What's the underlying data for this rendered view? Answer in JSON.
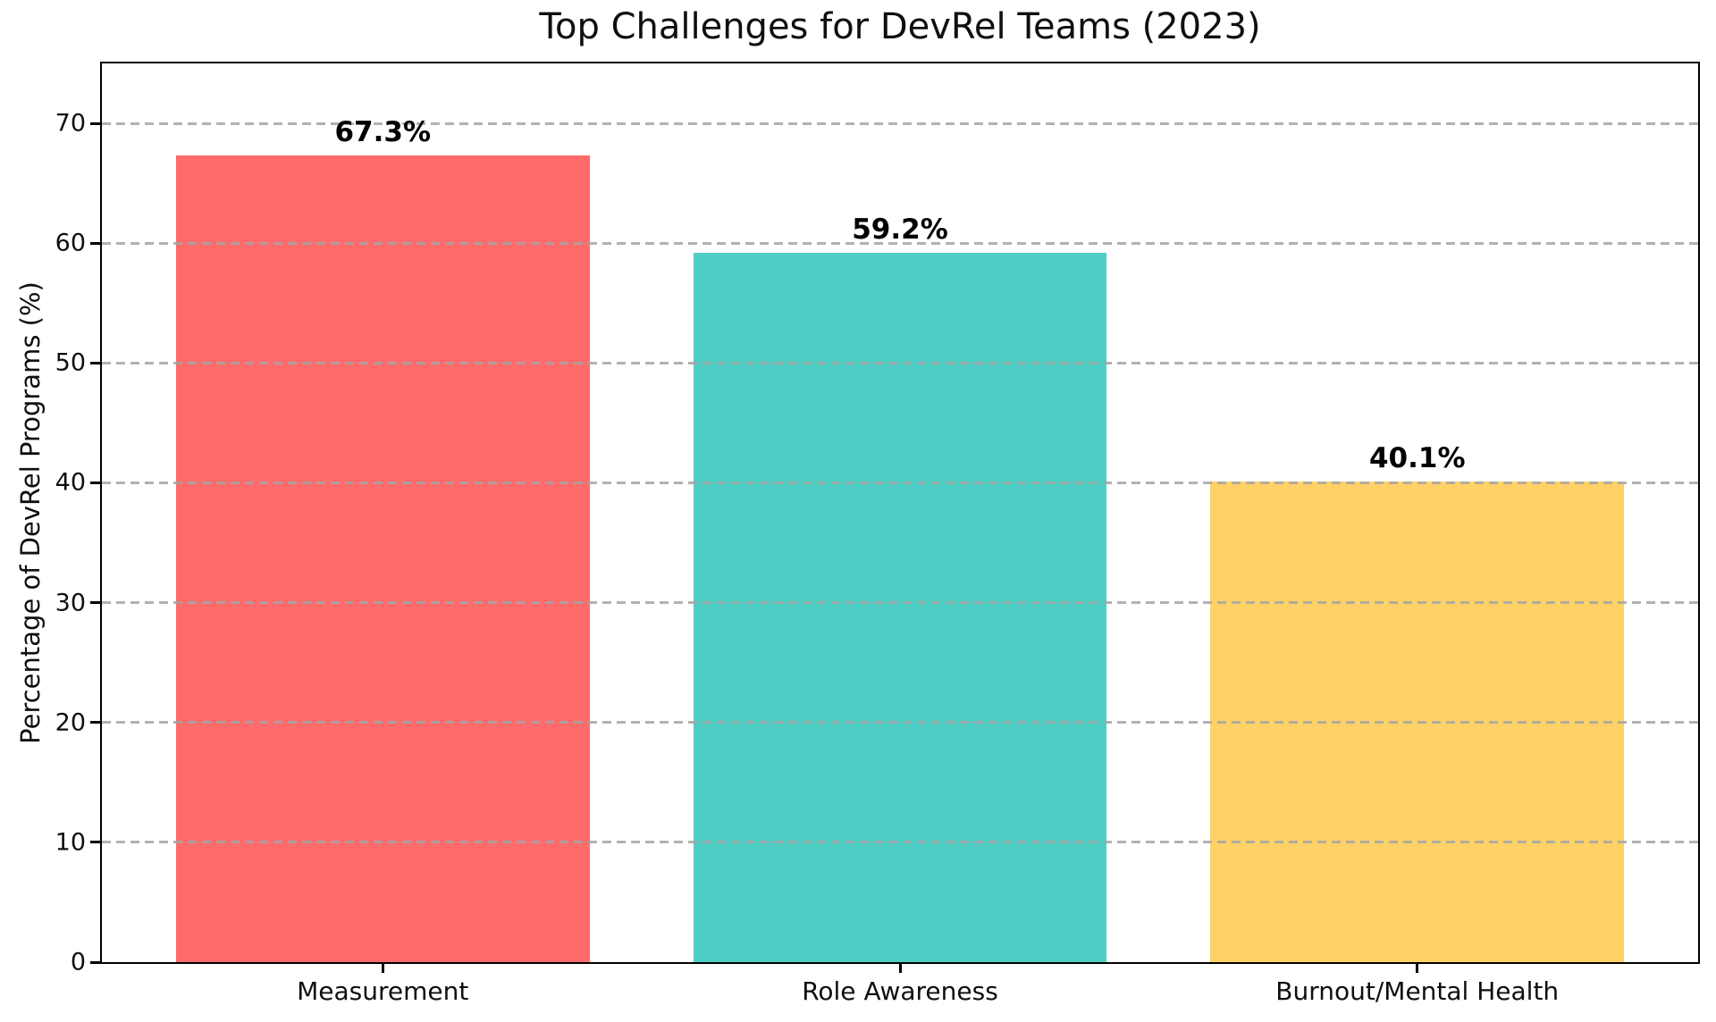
{
  "chart_data": {
    "type": "bar",
    "title": "Top Challenges for DevRel Teams (2023)",
    "xlabel": "",
    "ylabel": "Percentage of DevRel Programs (%)",
    "categories": [
      "Measurement",
      "Role Awareness",
      "Burnout/Mental Health"
    ],
    "values": [
      67.3,
      59.2,
      40.1
    ],
    "value_labels": [
      "67.3%",
      "59.2%",
      "40.1%"
    ],
    "bar_colors": [
      "#FF6B6B",
      "#4ECDC4",
      "#FFD166"
    ],
    "yticks": [
      0,
      10,
      20,
      30,
      40,
      50,
      60,
      70
    ],
    "ylim": [
      0,
      75
    ],
    "grid": {
      "axis": "y",
      "style": "dashed",
      "color": "#a5a5a5",
      "above_bars": true
    },
    "legend": "none",
    "text_color": "#0f0f0f",
    "background_color": "#ffffff"
  }
}
